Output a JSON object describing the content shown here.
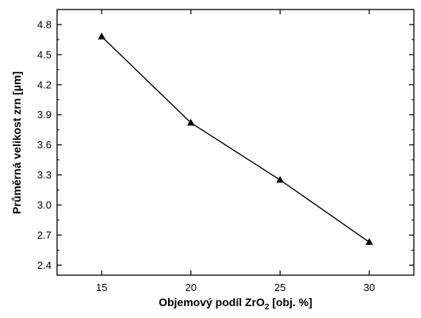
{
  "chart_data": {
    "type": "line",
    "xlabel": "Objemový podíl ZrO",
    "xlabel_subscript": "2",
    "xlabel_unit": " [obj. %]",
    "ylabel": "Průměrná velikost zrn [µm]",
    "x": [
      15,
      20,
      25,
      30
    ],
    "series": [
      {
        "values": [
          4.68,
          3.82,
          3.25,
          2.63
        ],
        "marker": "triangle",
        "color": "#000000"
      }
    ],
    "x_ticks": [
      "15",
      "20",
      "25",
      "30"
    ],
    "y_ticks": [
      "2.4",
      "2.7",
      "3.0",
      "3.3",
      "3.6",
      "3.9",
      "4.2",
      "4.5",
      "4.8"
    ],
    "xlim": [
      12.5,
      32.5
    ],
    "ylim": [
      2.3,
      4.95
    ],
    "grid": false
  }
}
